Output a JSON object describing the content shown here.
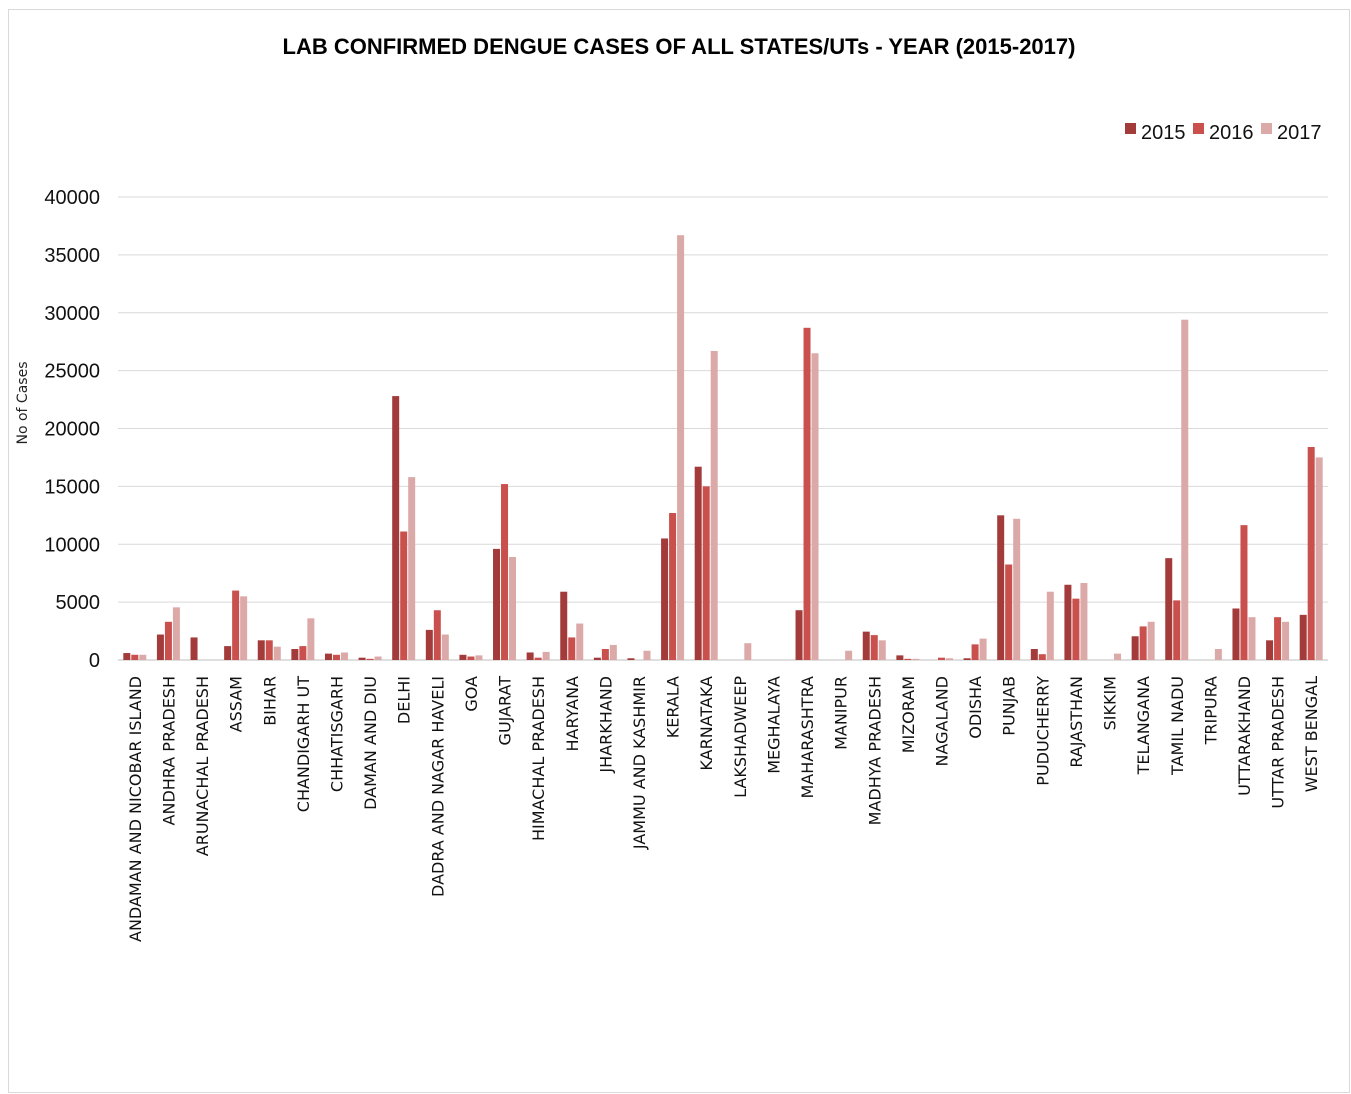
{
  "chart_data": {
    "type": "bar",
    "title": "LAB CONFIRMED DENGUE CASES OF ALL STATES/UTs - YEAR (2015-2017)",
    "xlabel": "",
    "ylabel": "No of Cases",
    "ylim": [
      0,
      40000
    ],
    "yticks": [
      0,
      5000,
      10000,
      15000,
      20000,
      25000,
      30000,
      35000,
      40000
    ],
    "grid": true,
    "legend_position": "top-right",
    "categories": [
      "ANDAMAN AND NICOBAR ISLAND",
      "ANDHRA PRADESH",
      "ARUNACHAL PRADESH",
      "ASSAM",
      "BIHAR",
      "CHANDIGARH UT",
      "CHHATISGARH",
      "DAMAN AND DIU",
      "DELHI",
      "DADRA AND NAGAR HAVELI",
      "GOA",
      "GUJARAT",
      "HIMACHAL PRADESH",
      "HARYANA",
      "JHARKHAND",
      "JAMMU AND KASHMIR",
      "KERALA",
      "KARNATAKA",
      "LAKSHADWEEP",
      "MEGHALAYA",
      "MAHARASHTRA",
      "MANIPUR",
      "MADHYA PRADESH",
      "MIZORAM",
      "NAGALAND",
      "ODISHA",
      "PUNJAB",
      "PUDUCHERRY",
      "RAJASTHAN",
      "SIKKIM",
      "TELANGANA",
      "TAMIL NADU",
      "TRIPURA",
      "UTTARAKHAND",
      "UTTAR PRADESH",
      "WEST BENGAL"
    ],
    "series": [
      {
        "name": "2015",
        "color": "#a33b3b",
        "values": [
          600,
          2200,
          1950,
          1200,
          1700,
          950,
          550,
          200,
          22800,
          2600,
          450,
          9600,
          650,
          5900,
          200,
          150,
          10500,
          16700,
          0,
          0,
          4300,
          0,
          2450,
          400,
          0,
          150,
          12500,
          950,
          6500,
          0,
          2050,
          8800,
          0,
          4450,
          1700,
          3900
        ]
      },
      {
        "name": "2016",
        "color": "#c9504c",
        "values": [
          450,
          3300,
          0,
          6000,
          1700,
          1200,
          450,
          100,
          11100,
          4300,
          300,
          15200,
          200,
          1950,
          950,
          0,
          12700,
          15000,
          0,
          0,
          28700,
          0,
          2150,
          100,
          200,
          1350,
          8250,
          500,
          5300,
          0,
          2900,
          5150,
          0,
          11650,
          3700,
          18400
        ]
      },
      {
        "name": "2017",
        "color": "#dba9a8",
        "values": [
          450,
          4550,
          0,
          5500,
          1150,
          3600,
          650,
          300,
          15800,
          2200,
          400,
          8900,
          700,
          3150,
          1300,
          800,
          36700,
          26700,
          1450,
          0,
          26500,
          800,
          1700,
          100,
          150,
          1850,
          12200,
          5900,
          6650,
          550,
          3300,
          29400,
          950,
          3700,
          3300,
          17500
        ]
      }
    ]
  }
}
